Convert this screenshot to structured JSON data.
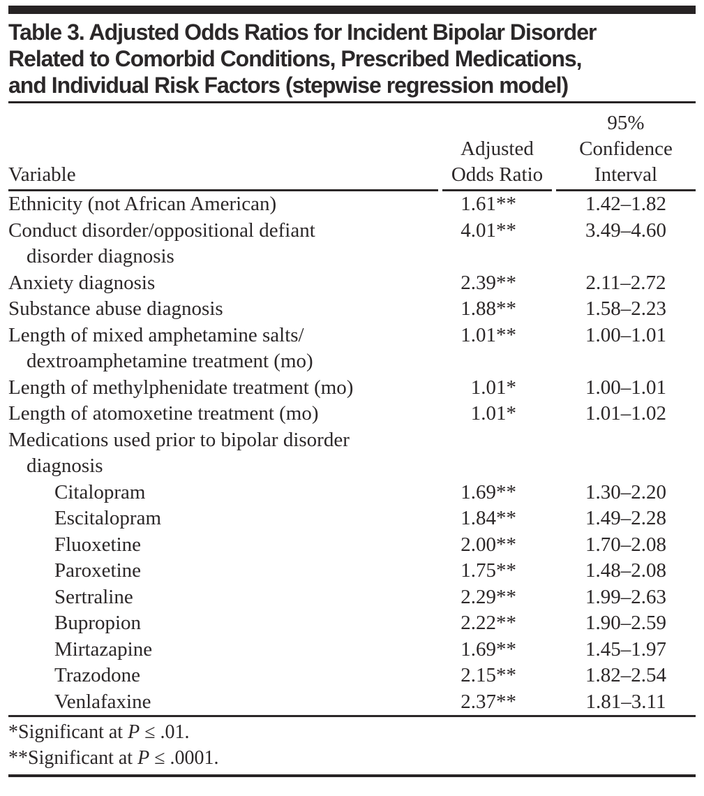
{
  "title_lines": [
    "Table 3. Adjusted Odds Ratios for Incident Bipolar Disorder",
    "Related to Comorbid Conditions, Prescribed Medications,",
    "and Individual Risk Factors (stepwise regression model)"
  ],
  "table": {
    "columns": {
      "variable": "Variable",
      "aor_line1": "Adjusted",
      "aor_line2": "Odds Ratio",
      "ci_line1": "95%",
      "ci_line2": "Confidence",
      "ci_line3": "Interval"
    },
    "rows": [
      {
        "text": "Ethnicity (not African American)",
        "indent": 0,
        "aor": "1.61**",
        "ci": "1.42–1.82"
      },
      {
        "text": "Conduct disorder/oppositional defiant",
        "indent": 0,
        "aor": "4.01**",
        "ci": "3.49–4.60"
      },
      {
        "text": "disorder diagnosis",
        "indent": 1,
        "aor": "",
        "ci": ""
      },
      {
        "text": "Anxiety diagnosis",
        "indent": 0,
        "aor": "2.39**",
        "ci": "2.11–2.72"
      },
      {
        "text": "Substance abuse diagnosis",
        "indent": 0,
        "aor": "1.88**",
        "ci": "1.58–2.23"
      },
      {
        "text": "Length of mixed amphetamine salts/",
        "indent": 0,
        "aor": "1.01**",
        "ci": "1.00–1.01"
      },
      {
        "text": "dextroamphetamine treatment (mo)",
        "indent": 1,
        "aor": "",
        "ci": ""
      },
      {
        "text": "Length of methylphenidate treatment (mo)",
        "indent": 0,
        "aor": "1.01*",
        "ci": "1.00–1.01"
      },
      {
        "text": "Length of atomoxetine treatment (mo)",
        "indent": 0,
        "aor": "1.01*",
        "ci": "1.01–1.02"
      },
      {
        "text": "Medications used prior to bipolar disorder",
        "indent": 0,
        "aor": "",
        "ci": ""
      },
      {
        "text": "diagnosis",
        "indent": 1,
        "aor": "",
        "ci": ""
      },
      {
        "text": "Citalopram",
        "indent": 2,
        "aor": "1.69**",
        "ci": "1.30–2.20"
      },
      {
        "text": "Escitalopram",
        "indent": 2,
        "aor": "1.84**",
        "ci": "1.49–2.28"
      },
      {
        "text": "Fluoxetine",
        "indent": 2,
        "aor": "2.00**",
        "ci": "1.70–2.08"
      },
      {
        "text": "Paroxetine",
        "indent": 2,
        "aor": "1.75**",
        "ci": "1.48–2.08"
      },
      {
        "text": "Sertraline",
        "indent": 2,
        "aor": "2.29**",
        "ci": "1.99–2.63"
      },
      {
        "text": "Bupropion",
        "indent": 2,
        "aor": "2.22**",
        "ci": "1.90–2.59"
      },
      {
        "text": "Mirtazapine",
        "indent": 2,
        "aor": "1.69**",
        "ci": "1.45–1.97"
      },
      {
        "text": "Trazodone",
        "indent": 2,
        "aor": "2.15**",
        "ci": "1.82–2.54"
      },
      {
        "text": "Venlafaxine",
        "indent": 2,
        "aor": "2.37**",
        "ci": "1.81–3.11"
      }
    ]
  },
  "footnotes": [
    {
      "pre": "*Significant at ",
      "symbol": "P",
      "post": " ≤ .01."
    },
    {
      "pre": "**Significant at ",
      "symbol": "P",
      "post": " ≤ .0001."
    }
  ],
  "colors": {
    "ink": "#2b2728",
    "bar": "#272324",
    "background": "#ffffff"
  }
}
